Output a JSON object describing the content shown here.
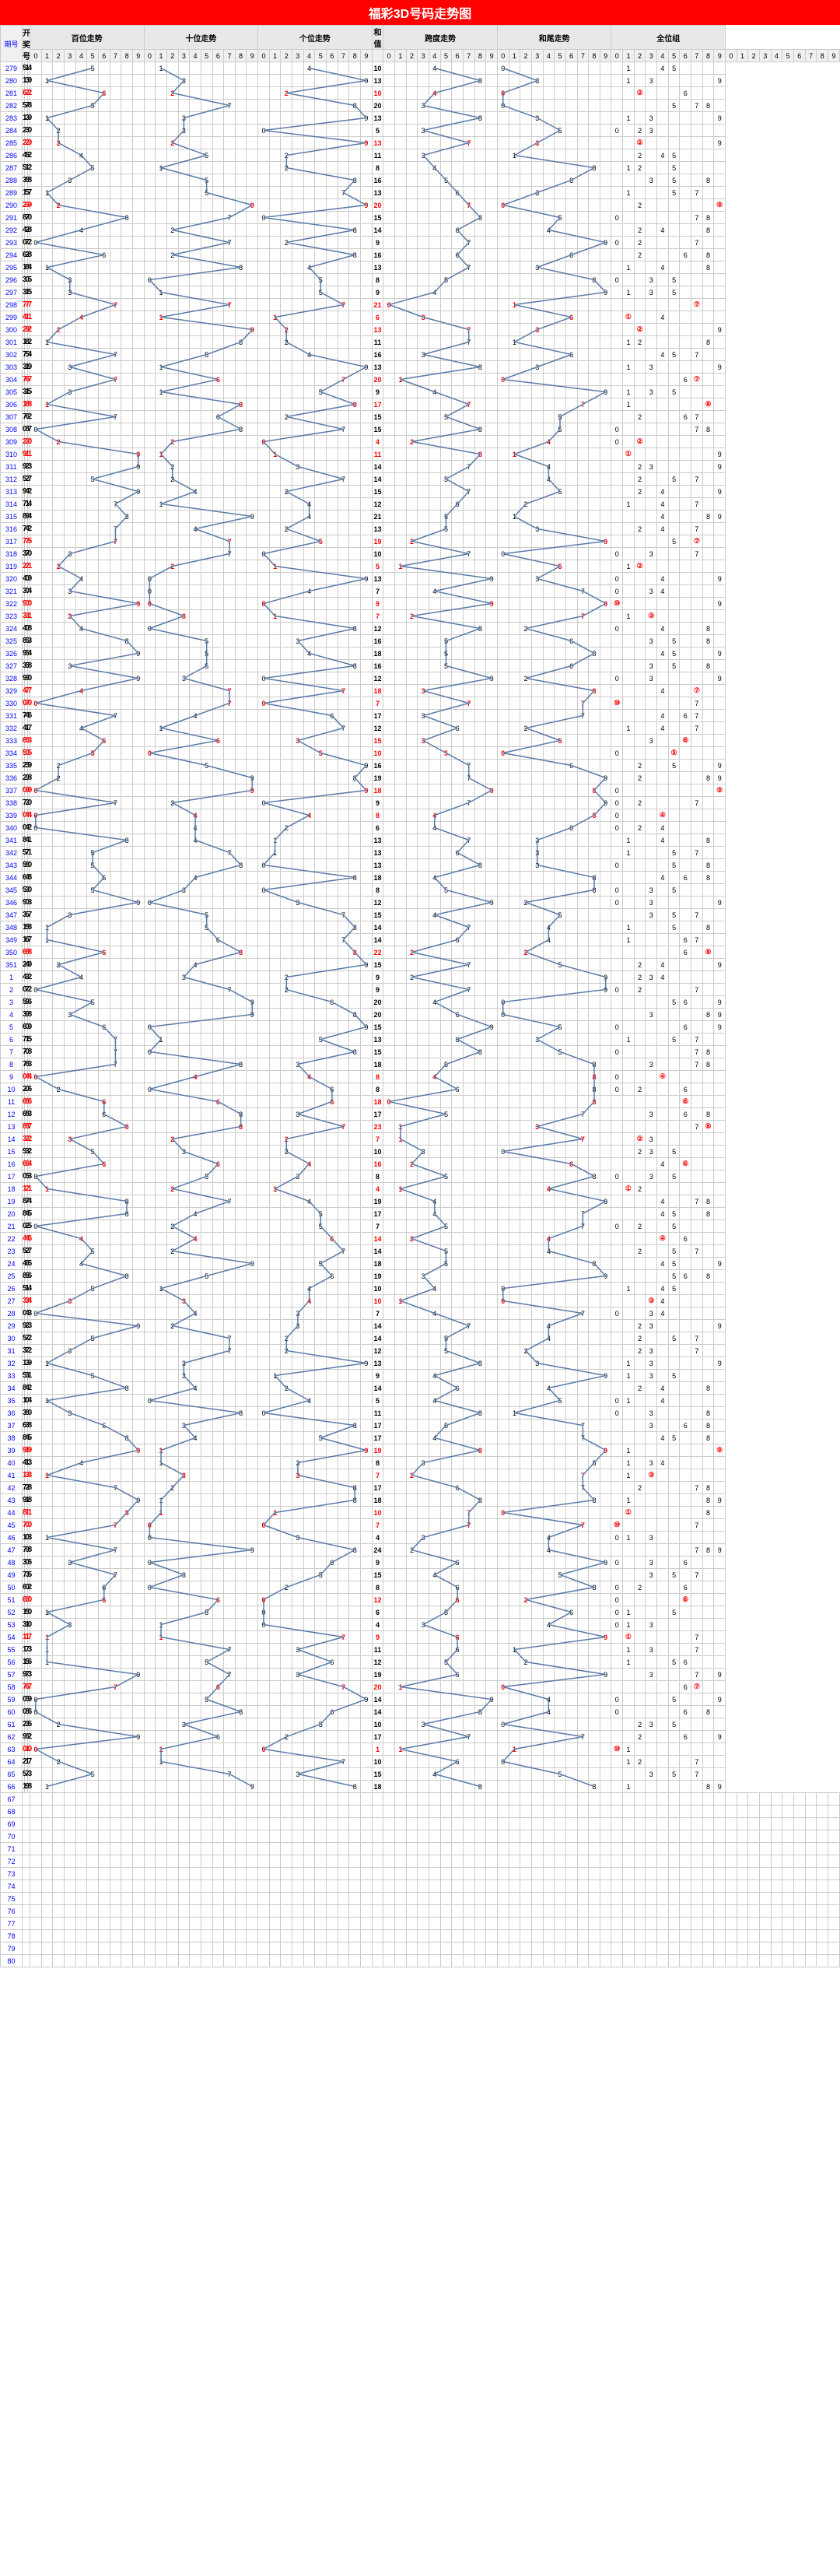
{
  "title": "福彩3D号码走势图",
  "headers": {
    "period": "期号",
    "draw": "开奖号",
    "groups": [
      "百位走势",
      "十位走势",
      "个位走势",
      "和值",
      "跨度走势",
      "和尾走势",
      "全位组"
    ],
    "digits": [
      "0",
      "1",
      "2",
      "3",
      "4",
      "5",
      "6",
      "7",
      "8",
      "9"
    ]
  },
  "colors": {
    "line": "#5b7ba8",
    "red": "#ff0000",
    "blue": "#0000ff",
    "grid": "#cccccc"
  },
  "rows": [
    {
      "p": "279",
      "d": [
        5,
        1,
        4
      ],
      "s": 10
    },
    {
      "p": "280",
      "d": [
        1,
        3,
        9
      ],
      "s": 13
    },
    {
      "p": "281",
      "d": [
        6,
        2,
        2
      ],
      "r": 1,
      "s": 10,
      "sr": 1
    },
    {
      "p": "282",
      "d": [
        5,
        7,
        8
      ],
      "s": 20
    },
    {
      "p": "283",
      "d": [
        1,
        3,
        9
      ],
      "s": 13
    },
    {
      "p": "284",
      "d": [
        2,
        3,
        0
      ],
      "s": 5
    },
    {
      "p": "285",
      "d": [
        2,
        2,
        9
      ],
      "r": 1,
      "s": 13,
      "sr": 1
    },
    {
      "p": "286",
      "d": [
        4,
        5,
        2
      ],
      "s": 11
    },
    {
      "p": "287",
      "d": [
        5,
        1,
        2
      ],
      "s": 8
    },
    {
      "p": "288",
      "d": [
        3,
        5,
        8
      ],
      "s": 16
    },
    {
      "p": "289",
      "d": [
        1,
        5,
        7
      ],
      "s": 13
    },
    {
      "p": "290",
      "d": [
        2,
        9,
        9
      ],
      "r": 1,
      "s": 20,
      "sr": 1
    },
    {
      "p": "291",
      "d": [
        8,
        7,
        0
      ],
      "s": 15
    },
    {
      "p": "292",
      "d": [
        4,
        2,
        8
      ],
      "s": 14
    },
    {
      "p": "293",
      "d": [
        0,
        7,
        2
      ],
      "s": 9
    },
    {
      "p": "294",
      "d": [
        6,
        2,
        8
      ],
      "s": 16
    },
    {
      "p": "295",
      "d": [
        1,
        8,
        4
      ],
      "s": 13
    },
    {
      "p": "296",
      "d": [
        3,
        0,
        5
      ],
      "s": 8
    },
    {
      "p": "297",
      "d": [
        3,
        1,
        5
      ],
      "s": 9
    },
    {
      "p": "298",
      "d": [
        7,
        7,
        7
      ],
      "r": 1,
      "s": 21,
      "sr": 1
    },
    {
      "p": "299",
      "d": [
        4,
        1,
        1
      ],
      "r": 1,
      "s": 6,
      "sr": 1
    },
    {
      "p": "300",
      "d": [
        2,
        9,
        2
      ],
      "r": 1,
      "s": 13,
      "sr": 1
    },
    {
      "p": "301",
      "d": [
        1,
        8,
        2
      ],
      "s": 11
    },
    {
      "p": "302",
      "d": [
        7,
        5,
        4
      ],
      "s": 16
    },
    {
      "p": "303",
      "d": [
        3,
        1,
        9
      ],
      "s": 13
    },
    {
      "p": "304",
      "d": [
        7,
        6,
        7
      ],
      "r": 1,
      "s": 20,
      "sr": 1
    },
    {
      "p": "305",
      "d": [
        3,
        1,
        5
      ],
      "s": 9
    },
    {
      "p": "306",
      "d": [
        1,
        8,
        8
      ],
      "r": 1,
      "s": 17,
      "sr": 1
    },
    {
      "p": "307",
      "d": [
        7,
        6,
        2
      ],
      "s": 15
    },
    {
      "p": "308",
      "d": [
        0,
        8,
        7
      ],
      "s": 15
    },
    {
      "p": "309",
      "d": [
        2,
        2,
        0
      ],
      "r": 1,
      "s": 4,
      "sr": 1
    },
    {
      "p": "310",
      "d": [
        9,
        1,
        1
      ],
      "r": 1,
      "s": 11,
      "sr": 1
    },
    {
      "p": "311",
      "d": [
        9,
        2,
        3
      ],
      "s": 14
    },
    {
      "p": "312",
      "d": [
        5,
        2,
        7
      ],
      "s": 14
    },
    {
      "p": "313",
      "d": [
        9,
        4,
        2
      ],
      "s": 15
    },
    {
      "p": "314",
      "d": [
        7,
        1,
        4
      ],
      "s": 12
    },
    {
      "p": "315",
      "d": [
        8,
        9,
        4
      ],
      "s": 21
    },
    {
      "p": "316",
      "d": [
        7,
        4,
        2
      ],
      "s": 13
    },
    {
      "p": "317",
      "d": [
        7,
        7,
        5
      ],
      "r": 1,
      "s": 19,
      "sr": 1
    },
    {
      "p": "318",
      "d": [
        3,
        7,
        0
      ],
      "s": 10
    },
    {
      "p": "319",
      "d": [
        2,
        2,
        1
      ],
      "r": 1,
      "s": 5,
      "sr": 1
    },
    {
      "p": "320",
      "d": [
        4,
        0,
        9
      ],
      "s": 13
    },
    {
      "p": "321",
      "d": [
        3,
        0,
        4
      ],
      "s": 7
    },
    {
      "p": "322",
      "d": [
        9,
        0,
        0
      ],
      "r": 1,
      "s": 9,
      "sr": 1
    },
    {
      "p": "323",
      "d": [
        3,
        3,
        1
      ],
      "r": 1,
      "s": 7,
      "sr": 1
    },
    {
      "p": "324",
      "d": [
        4,
        0,
        8
      ],
      "s": 12
    },
    {
      "p": "325",
      "d": [
        8,
        5,
        3
      ],
      "s": 16
    },
    {
      "p": "326",
      "d": [
        9,
        5,
        4
      ],
      "s": 18
    },
    {
      "p": "327",
      "d": [
        3,
        5,
        8
      ],
      "s": 16
    },
    {
      "p": "328",
      "d": [
        9,
        3,
        0
      ],
      "s": 12
    },
    {
      "p": "329",
      "d": [
        4,
        7,
        7
      ],
      "r": 1,
      "s": 18,
      "sr": 1
    },
    {
      "p": "330",
      "d": [
        0,
        7,
        0
      ],
      "r": 1,
      "s": 7,
      "sr": 1
    },
    {
      "p": "331",
      "d": [
        7,
        4,
        6
      ],
      "s": 17
    },
    {
      "p": "332",
      "d": [
        4,
        1,
        7
      ],
      "s": 12
    },
    {
      "p": "333",
      "d": [
        6,
        6,
        3
      ],
      "r": 1,
      "s": 15,
      "sr": 1
    },
    {
      "p": "334",
      "d": [
        5,
        0,
        5
      ],
      "r": 1,
      "s": 10,
      "sr": 1
    },
    {
      "p": "335",
      "d": [
        2,
        5,
        9
      ],
      "s": 16
    },
    {
      "p": "336",
      "d": [
        2,
        9,
        8
      ],
      "s": 19
    },
    {
      "p": "337",
      "d": [
        0,
        9,
        9
      ],
      "r": 1,
      "s": 18,
      "sr": 1
    },
    {
      "p": "338",
      "d": [
        7,
        2,
        0
      ],
      "s": 9
    },
    {
      "p": "339",
      "d": [
        0,
        4,
        4
      ],
      "r": 1,
      "s": 8,
      "sr": 1
    },
    {
      "p": "340",
      "d": [
        0,
        4,
        2
      ],
      "s": 6
    },
    {
      "p": "341",
      "d": [
        8,
        4,
        1
      ],
      "s": 13
    },
    {
      "p": "342",
      "d": [
        5,
        7,
        1
      ],
      "s": 13
    },
    {
      "p": "343",
      "d": [
        5,
        8,
        0
      ],
      "s": 13
    },
    {
      "p": "344",
      "d": [
        6,
        4,
        8
      ],
      "s": 18
    },
    {
      "p": "345",
      "d": [
        5,
        3,
        0
      ],
      "s": 8
    },
    {
      "p": "346",
      "d": [
        9,
        0,
        3
      ],
      "s": 12
    },
    {
      "p": "347",
      "d": [
        3,
        5,
        7
      ],
      "s": 15
    },
    {
      "p": "348",
      "d": [
        1,
        5,
        8
      ],
      "s": 14
    },
    {
      "p": "349",
      "d": [
        1,
        6,
        7
      ],
      "s": 14
    },
    {
      "p": "350",
      "d": [
        6,
        8,
        8
      ],
      "r": 1,
      "s": 22,
      "sr": 1
    },
    {
      "p": "351",
      "d": [
        2,
        4,
        9
      ],
      "s": 15
    },
    {
      "p": "1",
      "d": [
        4,
        3,
        2
      ],
      "s": 9
    },
    {
      "p": "2",
      "d": [
        0,
        7,
        2
      ],
      "s": 9
    },
    {
      "p": "3",
      "d": [
        5,
        9,
        6
      ],
      "s": 20
    },
    {
      "p": "4",
      "d": [
        3,
        9,
        8
      ],
      "s": 20
    },
    {
      "p": "5",
      "d": [
        6,
        0,
        9
      ],
      "s": 15
    },
    {
      "p": "6",
      "d": [
        7,
        1,
        5
      ],
      "s": 13
    },
    {
      "p": "7",
      "d": [
        7,
        0,
        8
      ],
      "s": 15
    },
    {
      "p": "8",
      "d": [
        7,
        8,
        3
      ],
      "s": 18
    },
    {
      "p": "9",
      "d": [
        0,
        4,
        4
      ],
      "r": 1,
      "s": 8,
      "sr": 1
    },
    {
      "p": "10",
      "d": [
        2,
        0,
        6
      ],
      "s": 8
    },
    {
      "p": "11",
      "d": [
        6,
        6,
        6
      ],
      "r": 1,
      "s": 18,
      "sr": 1
    },
    {
      "p": "12",
      "d": [
        6,
        8,
        3
      ],
      "s": 17
    },
    {
      "p": "13",
      "d": [
        8,
        8,
        7
      ],
      "r": 1,
      "s": 23,
      "sr": 1
    },
    {
      "p": "14",
      "d": [
        3,
        2,
        2
      ],
      "r": 1,
      "s": 7,
      "sr": 1
    },
    {
      "p": "15",
      "d": [
        5,
        3,
        2
      ],
      "s": 10
    },
    {
      "p": "16",
      "d": [
        6,
        6,
        4
      ],
      "r": 1,
      "s": 16,
      "sr": 1
    },
    {
      "p": "17",
      "d": [
        0,
        5,
        3
      ],
      "s": 8
    },
    {
      "p": "18",
      "d": [
        1,
        2,
        1
      ],
      "r": 1,
      "s": 4,
      "sr": 1
    },
    {
      "p": "19",
      "d": [
        8,
        7,
        4
      ],
      "s": 19
    },
    {
      "p": "20",
      "d": [
        8,
        4,
        5
      ],
      "s": 17
    },
    {
      "p": "21",
      "d": [
        0,
        2,
        5
      ],
      "s": 7
    },
    {
      "p": "22",
      "d": [
        4,
        4,
        6
      ],
      "r": 1,
      "s": 14,
      "sr": 1
    },
    {
      "p": "23",
      "d": [
        5,
        2,
        7
      ],
      "s": 14
    },
    {
      "p": "24",
      "d": [
        4,
        9,
        5
      ],
      "s": 18
    },
    {
      "p": "25",
      "d": [
        8,
        5,
        6
      ],
      "s": 19
    },
    {
      "p": "26",
      "d": [
        5,
        1,
        4
      ],
      "s": 10
    },
    {
      "p": "27",
      "d": [
        3,
        3,
        4
      ],
      "r": 1,
      "s": 10,
      "sr": 1
    },
    {
      "p": "28",
      "d": [
        0,
        4,
        3
      ],
      "s": 7
    },
    {
      "p": "29",
      "d": [
        9,
        2,
        3
      ],
      "s": 14
    },
    {
      "p": "30",
      "d": [
        5,
        7,
        2
      ],
      "s": 14
    },
    {
      "p": "31",
      "d": [
        3,
        7,
        2
      ],
      "s": 12
    },
    {
      "p": "32",
      "d": [
        1,
        3,
        9
      ],
      "s": 13
    },
    {
      "p": "33",
      "d": [
        5,
        3,
        1
      ],
      "s": 9
    },
    {
      "p": "34",
      "d": [
        8,
        4,
        2
      ],
      "s": 14
    },
    {
      "p": "35",
      "d": [
        1,
        0,
        4
      ],
      "s": 5
    },
    {
      "p": "36",
      "d": [
        3,
        8,
        0
      ],
      "s": 11
    },
    {
      "p": "37",
      "d": [
        6,
        3,
        8
      ],
      "s": 17
    },
    {
      "p": "38",
      "d": [
        8,
        4,
        5
      ],
      "s": 17
    },
    {
      "p": "39",
      "d": [
        9,
        1,
        9
      ],
      "r": 1,
      "s": 19,
      "sr": 1
    },
    {
      "p": "40",
      "d": [
        4,
        1,
        3
      ],
      "s": 8
    },
    {
      "p": "41",
      "d": [
        1,
        3,
        3
      ],
      "r": 1,
      "s": 7,
      "sr": 1
    },
    {
      "p": "42",
      "d": [
        7,
        2,
        8
      ],
      "s": 17
    },
    {
      "p": "43",
      "d": [
        9,
        1,
        8
      ],
      "s": 18
    },
    {
      "p": "44",
      "d": [
        8,
        1,
        1
      ],
      "r": 1,
      "s": 10,
      "sr": 1
    },
    {
      "p": "45",
      "d": [
        7,
        0,
        0
      ],
      "r": 1,
      "s": 7,
      "sr": 1
    },
    {
      "p": "46",
      "d": [
        1,
        0,
        3
      ],
      "s": 4
    },
    {
      "p": "47",
      "d": [
        7,
        9,
        8
      ],
      "s": 24
    },
    {
      "p": "48",
      "d": [
        3,
        0,
        6
      ],
      "s": 9
    },
    {
      "p": "49",
      "d": [
        7,
        3,
        5
      ],
      "s": 15
    },
    {
      "p": "50",
      "d": [
        6,
        0,
        2
      ],
      "s": 8
    },
    {
      "p": "51",
      "d": [
        6,
        6,
        0
      ],
      "r": 1,
      "s": 12,
      "sr": 1
    },
    {
      "p": "52",
      "d": [
        1,
        5,
        0
      ],
      "s": 6
    },
    {
      "p": "53",
      "d": [
        3,
        1,
        0
      ],
      "s": 4
    },
    {
      "p": "54",
      "d": [
        1,
        1,
        7
      ],
      "r": 1,
      "s": 9,
      "sr": 1
    },
    {
      "p": "55",
      "d": [
        1,
        7,
        3
      ],
      "s": 11
    },
    {
      "p": "56",
      "d": [
        1,
        5,
        6
      ],
      "s": 12
    },
    {
      "p": "57",
      "d": [
        9,
        7,
        3
      ],
      "s": 19
    },
    {
      "p": "58",
      "d": [
        7,
        6,
        7
      ],
      "r": 1,
      "s": 20,
      "sr": 1
    },
    {
      "p": "59",
      "d": [
        0,
        5,
        9
      ],
      "s": 14
    },
    {
      "p": "60",
      "d": [
        0,
        8,
        6
      ],
      "s": 14
    },
    {
      "p": "61",
      "d": [
        2,
        3,
        5
      ],
      "s": 10
    },
    {
      "p": "62",
      "d": [
        9,
        6,
        2
      ],
      "s": 17
    },
    {
      "p": "63",
      "d": [
        0,
        1,
        0
      ],
      "r": 1,
      "s": 1,
      "sr": 1
    },
    {
      "p": "64",
      "d": [
        2,
        1,
        7
      ],
      "s": 10
    },
    {
      "p": "65",
      "d": [
        5,
        7,
        3
      ],
      "s": 15
    },
    {
      "p": "66",
      "d": [
        1,
        9,
        8
      ],
      "s": 18
    }
  ],
  "emptyRows": [
    "67",
    "68",
    "69",
    "70",
    "71",
    "72",
    "73",
    "74",
    "75",
    "76",
    "77",
    "78",
    "79",
    "80"
  ]
}
